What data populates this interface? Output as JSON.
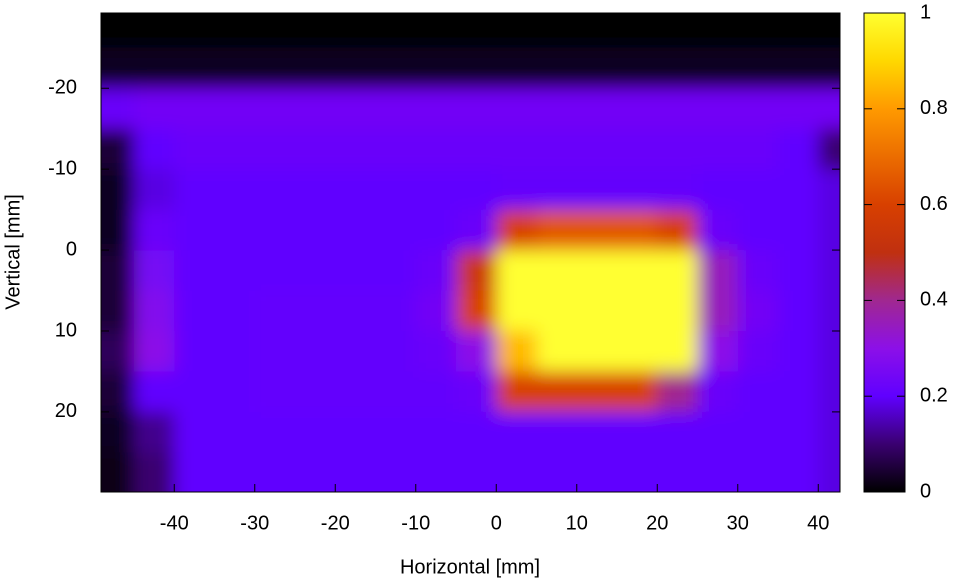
{
  "chart_data": {
    "type": "heatmap",
    "xlabel": "Horizontal [mm]",
    "ylabel": "Vertical [mm]",
    "xlim": [
      -49.1,
      42.7
    ],
    "ylim": [
      -29.3,
      29.9
    ],
    "y_reversed": true,
    "xticks": [
      -40,
      -30,
      -20,
      -10,
      0,
      10,
      20,
      30,
      40
    ],
    "yticks": [
      -20,
      -10,
      0,
      10,
      20
    ],
    "clim": [
      0,
      1
    ],
    "cticks": [
      0,
      0.2,
      0.4,
      0.6,
      0.8,
      1
    ],
    "colorscale": [
      [
        0,
        "#000000"
      ],
      [
        0.1,
        "#3a0070"
      ],
      [
        0.2,
        "#6000ff"
      ],
      [
        0.3,
        "#8c10e8"
      ],
      [
        0.4,
        "#a02890"
      ],
      [
        0.5,
        "#c03010"
      ],
      [
        0.6,
        "#d84000"
      ],
      [
        0.8,
        "#ff9a00"
      ],
      [
        0.9,
        "#ffd800"
      ],
      [
        1,
        "#ffff30"
      ]
    ],
    "x": [
      -47.5,
      -42.5,
      -37.5,
      -32.5,
      -27.5,
      -22.5,
      -17.5,
      -12.5,
      -7.5,
      -2.5,
      2.5,
      7.5,
      12.5,
      17.5,
      22.5,
      27.5,
      32.5,
      37.5,
      42.5
    ],
    "y": [
      -27.5,
      -22.5,
      -17.5,
      -12.5,
      -7.5,
      -2.5,
      2.5,
      7.5,
      12.5,
      17.5,
      22.5,
      27.5
    ],
    "z": [
      [
        0,
        0,
        0,
        0,
        0,
        0,
        0,
        0,
        0,
        0,
        0,
        0,
        0,
        0,
        0,
        0,
        0,
        0,
        0
      ],
      [
        0.03,
        0.03,
        0.03,
        0.03,
        0.03,
        0.03,
        0.03,
        0.03,
        0.03,
        0.03,
        0.03,
        0.03,
        0.03,
        0.03,
        0.03,
        0.03,
        0.03,
        0.03,
        0.03
      ],
      [
        0.22,
        0.24,
        0.24,
        0.24,
        0.24,
        0.24,
        0.24,
        0.24,
        0.24,
        0.24,
        0.24,
        0.24,
        0.24,
        0.24,
        0.24,
        0.24,
        0.24,
        0.24,
        0.24
      ],
      [
        0.05,
        0.2,
        0.22,
        0.22,
        0.22,
        0.22,
        0.22,
        0.22,
        0.22,
        0.22,
        0.22,
        0.22,
        0.22,
        0.22,
        0.22,
        0.22,
        0.22,
        0.2,
        0.1
      ],
      [
        0.03,
        0.18,
        0.2,
        0.2,
        0.2,
        0.2,
        0.2,
        0.2,
        0.2,
        0.2,
        0.21,
        0.21,
        0.21,
        0.21,
        0.21,
        0.2,
        0.2,
        0.2,
        0.18
      ],
      [
        0.03,
        0.22,
        0.2,
        0.2,
        0.2,
        0.2,
        0.2,
        0.2,
        0.2,
        0.22,
        0.6,
        0.65,
        0.65,
        0.65,
        0.6,
        0.22,
        0.2,
        0.2,
        0.18
      ],
      [
        0.05,
        0.25,
        0.2,
        0.2,
        0.2,
        0.2,
        0.2,
        0.2,
        0.22,
        0.55,
        1,
        1,
        1,
        1,
        1,
        0.35,
        0.22,
        0.2,
        0.18
      ],
      [
        0.05,
        0.28,
        0.2,
        0.2,
        0.21,
        0.21,
        0.21,
        0.21,
        0.24,
        0.6,
        1,
        1,
        1,
        1,
        1,
        0.35,
        0.24,
        0.2,
        0.18
      ],
      [
        0.08,
        0.3,
        0.2,
        0.2,
        0.21,
        0.21,
        0.21,
        0.21,
        0.22,
        0.3,
        0.85,
        1,
        1,
        1,
        1,
        0.3,
        0.22,
        0.2,
        0.18
      ],
      [
        0.05,
        0.2,
        0.2,
        0.2,
        0.21,
        0.21,
        0.21,
        0.21,
        0.21,
        0.22,
        0.6,
        0.6,
        0.6,
        0.6,
        0.4,
        0.22,
        0.2,
        0.2,
        0.18
      ],
      [
        0.03,
        0.12,
        0.2,
        0.2,
        0.2,
        0.2,
        0.2,
        0.2,
        0.2,
        0.2,
        0.2,
        0.2,
        0.2,
        0.2,
        0.2,
        0.2,
        0.2,
        0.2,
        0.18
      ],
      [
        0.02,
        0.1,
        0.2,
        0.2,
        0.2,
        0.2,
        0.2,
        0.2,
        0.2,
        0.2,
        0.2,
        0.2,
        0.2,
        0.2,
        0.2,
        0.2,
        0.2,
        0.2,
        0.18
      ]
    ]
  }
}
